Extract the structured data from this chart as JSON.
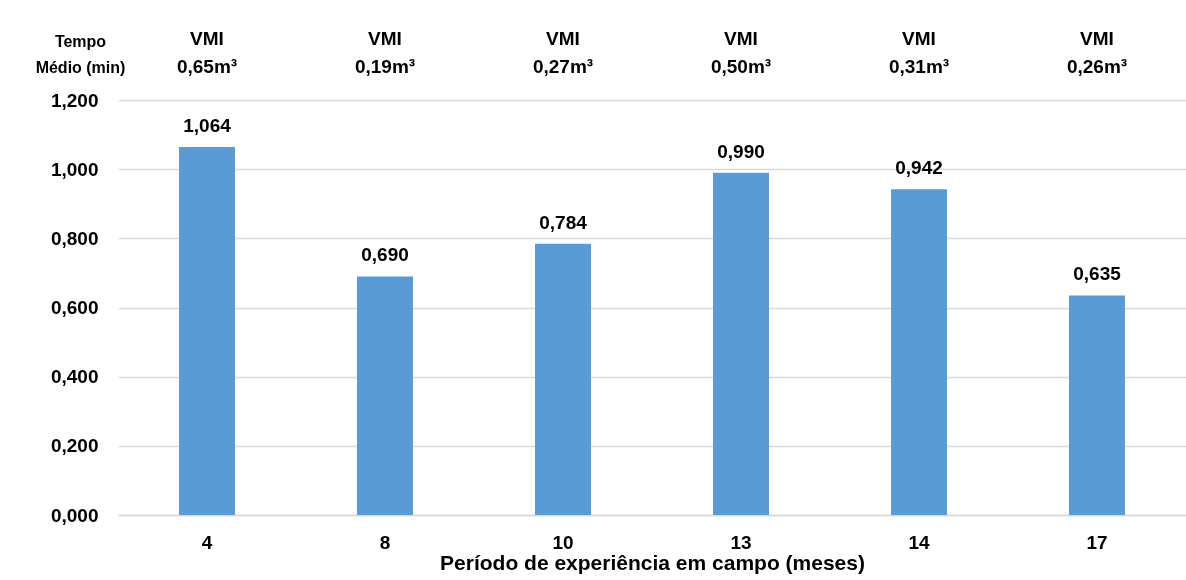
{
  "chart_data": {
    "type": "bar",
    "categories": [
      "4",
      "8",
      "10",
      "13",
      "14",
      "17"
    ],
    "values": [
      1.064,
      0.69,
      0.784,
      0.99,
      0.942,
      0.635
    ],
    "color": "#5b9bd5",
    "value_labels": [
      "1,064",
      "0,690",
      "0,784",
      "0,990",
      "0,942",
      "0,635"
    ],
    "xlabel": "Período de experiência em campo (meses)",
    "ylabel": "Tempo Médio (min)",
    "ylim": [
      0,
      1.2
    ],
    "yticks": [
      {
        "value": 0,
        "label": "0,000"
      },
      {
        "value": 0.2,
        "label": "0,200"
      },
      {
        "value": 0.4,
        "label": "0,400"
      },
      {
        "value": 0.6,
        "label": "0,600"
      },
      {
        "value": 0.8,
        "label": "0,800"
      },
      {
        "value": 1.0,
        "label": "1,000"
      },
      {
        "value": 1.2,
        "label": "1,200"
      }
    ],
    "grid": "y",
    "annotations": [
      "VMI 0,65m³",
      "VMI 0,19m³",
      "VMI 0,27m³",
      "VMI 0,50m³",
      "VMI 0,31m³",
      "VMI 0,26m³"
    ]
  }
}
